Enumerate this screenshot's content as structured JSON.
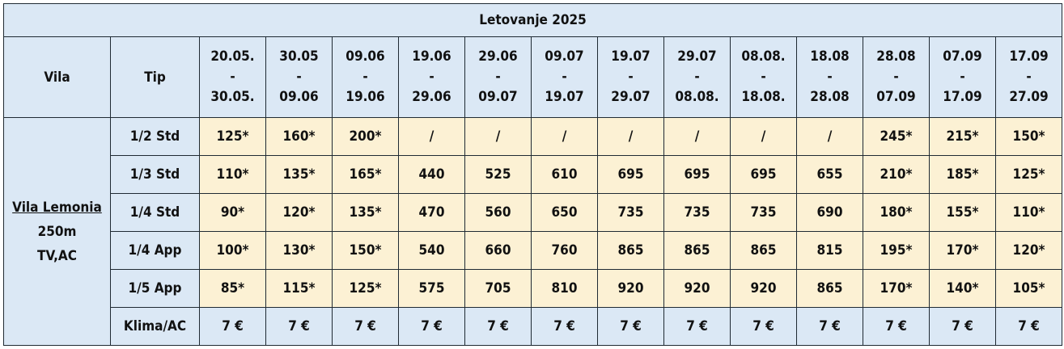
{
  "title": "Letovanje 2025",
  "headers": {
    "vila": "Vila",
    "tip": "Tip"
  },
  "periods": [
    {
      "from": "20.05.",
      "sep": "-",
      "to": "30.05."
    },
    {
      "from": "30.05",
      "sep": "-",
      "to": "09.06"
    },
    {
      "from": "09.06",
      "sep": "-",
      "to": "19.06"
    },
    {
      "from": "19.06",
      "sep": "-",
      "to": "29.06"
    },
    {
      "from": "29.06",
      "sep": "-",
      "to": "09.07"
    },
    {
      "from": "09.07",
      "sep": "-",
      "to": "19.07"
    },
    {
      "from": "19.07",
      "sep": "-",
      "to": "29.07"
    },
    {
      "from": "29.07",
      "sep": "-",
      "to": "08.08."
    },
    {
      "from": "08.08.",
      "sep": "-",
      "to": "18.08."
    },
    {
      "from": "18.08",
      "sep": "-",
      "to": "28.08"
    },
    {
      "from": "28.08",
      "sep": "-",
      "to": "07.09"
    },
    {
      "from": "07.09",
      "sep": "-",
      "to": "17.09"
    },
    {
      "from": "17.09",
      "sep": "-",
      "to": "27.09"
    }
  ],
  "villa": {
    "name": "Vila Lemonia",
    "distance": "250m",
    "amenities": "TV,AC"
  },
  "rows": [
    {
      "tip": "1/2 Std",
      "prices": [
        "125*",
        "160*",
        "200*",
        "/",
        "/",
        "/",
        "/",
        "/",
        "/",
        "/",
        "245*",
        "215*",
        "150*"
      ]
    },
    {
      "tip": "1/3 Std",
      "prices": [
        "110*",
        "135*",
        "165*",
        "440",
        "525",
        "610",
        "695",
        "695",
        "695",
        "655",
        "210*",
        "185*",
        "125*"
      ]
    },
    {
      "tip": "1/4 Std",
      "prices": [
        "90*",
        "120*",
        "135*",
        "470",
        "560",
        "650",
        "735",
        "735",
        "735",
        "690",
        "180*",
        "155*",
        "110*"
      ]
    },
    {
      "tip": "1/4 App",
      "prices": [
        "100*",
        "130*",
        "150*",
        "540",
        "660",
        "760",
        "865",
        "865",
        "865",
        "815",
        "195*",
        "170*",
        "120*"
      ]
    },
    {
      "tip": "1/5 App",
      "prices": [
        "85*",
        "115*",
        "125*",
        "575",
        "705",
        "810",
        "920",
        "920",
        "920",
        "865",
        "170*",
        "140*",
        "105*"
      ]
    }
  ],
  "klima": {
    "label": "Klima/AC",
    "prices": [
      "7 €",
      "7 €",
      "7 €",
      "7 €",
      "7 €",
      "7 €",
      "7 €",
      "7 €",
      "7 €",
      "7 €",
      "7 €",
      "7 €",
      "7 €"
    ]
  }
}
